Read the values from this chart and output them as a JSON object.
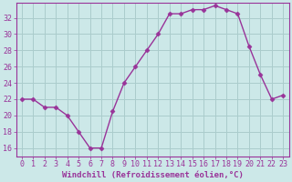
{
  "x": [
    0,
    1,
    2,
    3,
    4,
    5,
    6,
    7,
    8,
    9,
    10,
    11,
    12,
    13,
    14,
    15,
    16,
    17,
    18,
    19,
    20,
    21,
    22,
    23
  ],
  "y": [
    22,
    22,
    21,
    21,
    20,
    18,
    16,
    16,
    20.5,
    24,
    26,
    28,
    30,
    32.5,
    32.5,
    33,
    33,
    33.5,
    33,
    32.5,
    28.5,
    25,
    22,
    22.5
  ],
  "line_color": "#993399",
  "marker": "D",
  "marker_size": 2.5,
  "xlabel": "Windchill (Refroidissement éolien,°C)",
  "ylabel_ticks": [
    16,
    18,
    20,
    22,
    24,
    26,
    28,
    30,
    32
  ],
  "xlim": [
    -0.5,
    23.5
  ],
  "ylim": [
    15.0,
    33.8
  ],
  "bg_color": "#cce8e8",
  "grid_color": "#aacccc",
  "tick_color": "#993399",
  "label_color": "#993399",
  "xlabel_fontsize": 6.5,
  "tick_fontsize": 6.0
}
